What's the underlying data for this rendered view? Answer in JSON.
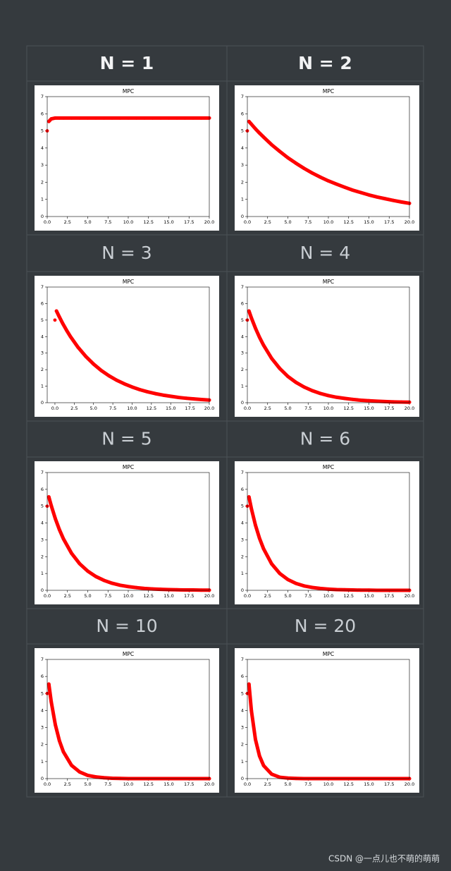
{
  "table": {
    "headers": [
      "N = 1",
      "N = 2",
      "N = 3",
      "N = 4",
      "N = 5",
      "N = 6",
      "N = 10",
      "N = 20"
    ]
  },
  "footer": "CSDN @一点儿也不萌的萌萌",
  "chart_data": [
    {
      "type": "scatter",
      "title": "MPC",
      "color": "#ff0000",
      "xlim": [
        0,
        20
      ],
      "ylim": [
        0,
        7
      ],
      "xticks": [
        {
          "value": 0,
          "label": "0.0"
        },
        2.5,
        {
          "value": 5,
          "label": "5.0"
        },
        7.5,
        {
          "value": 10,
          "label": "10.0"
        },
        12.5,
        {
          "value": 15,
          "label": "15.0"
        },
        17.5,
        {
          "value": 20,
          "label": "20.0"
        }
      ],
      "yticks": [
        0,
        1,
        2,
        3,
        4,
        5,
        6,
        7
      ],
      "x": [
        0,
        0.2,
        0.5,
        1,
        1.5,
        2,
        3,
        4,
        5,
        6,
        7,
        8,
        9,
        10,
        11,
        12,
        13,
        14,
        15,
        16,
        17,
        18,
        19,
        20
      ],
      "values": [
        5.0,
        5.55,
        5.7,
        5.75,
        5.75,
        5.75,
        5.75,
        5.75,
        5.75,
        5.75,
        5.75,
        5.75,
        5.75,
        5.75,
        5.75,
        5.75,
        5.75,
        5.75,
        5.75,
        5.75,
        5.75,
        5.75,
        5.75,
        5.75
      ]
    },
    {
      "type": "scatter",
      "title": "MPC",
      "color": "#ff0000",
      "xlim": [
        0,
        20
      ],
      "ylim": [
        0,
        7
      ],
      "xticks": [
        {
          "value": 0,
          "label": "0.0"
        },
        2.5,
        {
          "value": 5,
          "label": "5.0"
        },
        7.5,
        {
          "value": 10,
          "label": "10.0"
        },
        12.5,
        {
          "value": 15,
          "label": "15.0"
        },
        17.5,
        {
          "value": 20,
          "label": "20.0"
        }
      ],
      "yticks": [
        0,
        1,
        2,
        3,
        4,
        5,
        6,
        7
      ],
      "x": [
        0,
        0.2,
        0.5,
        1,
        1.5,
        2,
        3,
        4,
        5,
        6,
        7,
        8,
        9,
        10,
        11,
        12,
        13,
        14,
        15,
        16,
        17,
        18,
        19,
        20
      ],
      "values": [
        5.0,
        5.55,
        5.39,
        5.12,
        4.87,
        4.64,
        4.19,
        3.8,
        3.43,
        3.11,
        2.81,
        2.54,
        2.3,
        2.08,
        1.89,
        1.71,
        1.54,
        1.4,
        1.26,
        1.14,
        1.04,
        0.94,
        0.85,
        0.77
      ]
    },
    {
      "type": "scatter",
      "title": "MPC",
      "color": "#ff0000",
      "xlim": [
        -1,
        20
      ],
      "ylim": [
        0,
        7
      ],
      "xticks": [
        {
          "value": 0,
          "label": "0.0"
        },
        2.5,
        {
          "value": 5,
          "label": "5.0"
        },
        7.5,
        {
          "value": 10,
          "label": "10.0"
        },
        12.5,
        {
          "value": 15,
          "label": "15.0"
        },
        17.5,
        {
          "value": 20,
          "label": "20.0"
        }
      ],
      "yticks": [
        0,
        1,
        2,
        3,
        4,
        5,
        6,
        7
      ],
      "x": [
        0,
        0.2,
        0.5,
        1,
        1.5,
        2,
        3,
        4,
        5,
        6,
        7,
        8,
        9,
        10,
        11,
        12,
        13,
        14,
        15,
        16,
        17,
        18,
        19,
        20
      ],
      "values": [
        5.0,
        5.55,
        5.26,
        4.8,
        4.39,
        4.01,
        3.35,
        2.8,
        2.34,
        1.95,
        1.63,
        1.36,
        1.14,
        0.95,
        0.79,
        0.66,
        0.55,
        0.46,
        0.39,
        0.32,
        0.27,
        0.23,
        0.19,
        0.16
      ]
    },
    {
      "type": "scatter",
      "title": "MPC",
      "color": "#ff0000",
      "xlim": [
        0,
        20
      ],
      "ylim": [
        0,
        7
      ],
      "xticks": [
        {
          "value": 0,
          "label": "0.0"
        },
        2.5,
        {
          "value": 5,
          "label": "5.0"
        },
        7.5,
        {
          "value": 10,
          "label": "10.0"
        },
        12.5,
        {
          "value": 15,
          "label": "15.0"
        },
        17.5,
        {
          "value": 20,
          "label": "20.0"
        }
      ],
      "yticks": [
        0,
        1,
        2,
        3,
        4,
        5,
        6,
        7
      ],
      "x": [
        0,
        0.2,
        0.5,
        1,
        1.5,
        2,
        3,
        4,
        5,
        6,
        7,
        8,
        9,
        10,
        11,
        12,
        13,
        14,
        15,
        16,
        17,
        18,
        19,
        20
      ],
      "values": [
        5.0,
        5.55,
        5.13,
        4.51,
        3.96,
        3.48,
        2.68,
        2.07,
        1.59,
        1.23,
        0.95,
        0.73,
        0.56,
        0.43,
        0.33,
        0.26,
        0.2,
        0.15,
        0.12,
        0.09,
        0.07,
        0.05,
        0.04,
        0.03
      ]
    },
    {
      "type": "scatter",
      "title": "MPC",
      "color": "#ff0000",
      "xlim": [
        0,
        20
      ],
      "ylim": [
        0,
        7
      ],
      "xticks": [
        {
          "value": 0,
          "label": "0.0"
        },
        2.5,
        {
          "value": 5,
          "label": "5.0"
        },
        7.5,
        {
          "value": 10,
          "label": "10.0"
        },
        12.5,
        {
          "value": 15,
          "label": "15.0"
        },
        17.5,
        {
          "value": 20,
          "label": "20.0"
        }
      ],
      "yticks": [
        0,
        1,
        2,
        3,
        4,
        5,
        6,
        7
      ],
      "x": [
        0,
        0.2,
        0.5,
        1,
        1.5,
        2,
        3,
        4,
        5,
        6,
        7,
        8,
        9,
        10,
        11,
        12,
        13,
        14,
        15,
        16,
        17,
        18,
        19,
        20
      ],
      "values": [
        5.0,
        5.55,
        5.03,
        4.26,
        3.61,
        3.06,
        2.2,
        1.58,
        1.14,
        0.82,
        0.59,
        0.42,
        0.3,
        0.22,
        0.16,
        0.11,
        0.08,
        0.06,
        0.04,
        0.03,
        0.02,
        0.02,
        0.01,
        0.01
      ]
    },
    {
      "type": "scatter",
      "title": "MPC",
      "color": "#ff0000",
      "xlim": [
        0,
        20
      ],
      "ylim": [
        0,
        7
      ],
      "xticks": [
        {
          "value": 0,
          "label": "0.0"
        },
        2.5,
        {
          "value": 5,
          "label": "5.0"
        },
        7.5,
        {
          "value": 10,
          "label": "10.0"
        },
        12.5,
        {
          "value": 15,
          "label": "15.0"
        },
        17.5,
        {
          "value": 20,
          "label": "20.0"
        }
      ],
      "yticks": [
        0,
        1,
        2,
        3,
        4,
        5,
        6,
        7
      ],
      "x": [
        0,
        0.2,
        0.5,
        1,
        1.5,
        2,
        3,
        4,
        5,
        6,
        7,
        8,
        9,
        10,
        11,
        12,
        13,
        14,
        15,
        16,
        17,
        18,
        19,
        20
      ],
      "values": [
        5.0,
        5.55,
        4.85,
        3.87,
        3.09,
        2.47,
        1.57,
        1.0,
        0.64,
        0.41,
        0.26,
        0.17,
        0.11,
        0.07,
        0.04,
        0.03,
        0.02,
        0.01,
        0.01,
        0,
        0,
        0,
        0,
        0
      ]
    },
    {
      "type": "scatter",
      "title": "MPC",
      "color": "#ff0000",
      "xlim": [
        0,
        20
      ],
      "ylim": [
        0,
        7
      ],
      "xticks": [
        {
          "value": 0,
          "label": "0.0"
        },
        2.5,
        {
          "value": 5,
          "label": "5.0"
        },
        7.5,
        {
          "value": 10,
          "label": "10.0"
        },
        12.5,
        {
          "value": 15,
          "label": "15.0"
        },
        17.5,
        {
          "value": 20,
          "label": "20.0"
        }
      ],
      "yticks": [
        0,
        1,
        2,
        3,
        4,
        5,
        6,
        7
      ],
      "x": [
        0,
        0.2,
        0.5,
        1,
        1.5,
        2,
        3,
        4,
        5,
        6,
        7,
        8,
        9,
        10,
        11,
        12,
        13,
        14,
        15,
        16,
        17,
        18,
        19,
        20
      ],
      "values": [
        5.0,
        5.55,
        4.5,
        3.17,
        2.23,
        1.57,
        0.78,
        0.39,
        0.19,
        0.1,
        0.05,
        0.02,
        0.01,
        0,
        0,
        0,
        0,
        0,
        0,
        0,
        0,
        0,
        0,
        0
      ]
    },
    {
      "type": "scatter",
      "title": "MPC",
      "color": "#ff0000",
      "xlim": [
        0,
        20
      ],
      "ylim": [
        0,
        7
      ],
      "xticks": [
        {
          "value": 0,
          "label": "0.0"
        },
        2.5,
        {
          "value": 5,
          "label": "5.0"
        },
        7.5,
        {
          "value": 10,
          "label": "10.0"
        },
        12.5,
        {
          "value": 15,
          "label": "15.0"
        },
        17.5,
        {
          "value": 20,
          "label": "20.0"
        }
      ],
      "yticks": [
        0,
        1,
        2,
        3,
        4,
        5,
        6,
        7
      ],
      "x": [
        0,
        0.2,
        0.5,
        1,
        1.5,
        2,
        3,
        4,
        5,
        6,
        7,
        8,
        9,
        10,
        11,
        12,
        13,
        14,
        15,
        16,
        17,
        18,
        19,
        20
      ],
      "values": [
        5.0,
        5.55,
        3.99,
        2.3,
        1.33,
        0.77,
        0.26,
        0.08,
        0.03,
        0.01,
        0,
        0,
        0,
        0,
        0,
        0,
        0,
        0,
        0,
        0,
        0,
        0,
        0,
        0
      ]
    }
  ]
}
